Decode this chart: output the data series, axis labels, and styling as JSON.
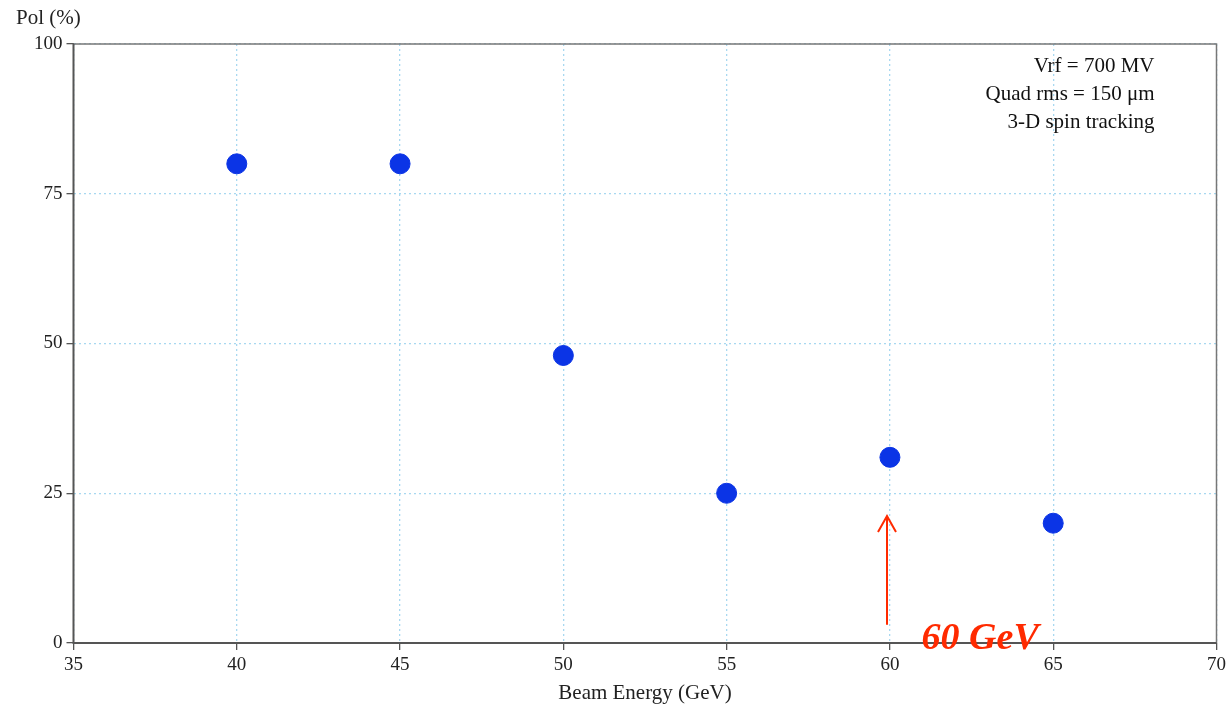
{
  "chart_data": {
    "type": "scatter",
    "xlabel": "Beam Energy (GeV)",
    "ylabel": "Pol (%)",
    "x": [
      40,
      45,
      50,
      55,
      60,
      65
    ],
    "series": [
      {
        "color": "#0b34e6",
        "values": [
          80,
          80,
          48,
          25,
          31,
          20
        ]
      }
    ],
    "xlim": [
      35,
      70
    ],
    "xticks": [
      35,
      40,
      45,
      50,
      55,
      60,
      65,
      70
    ],
    "ylim": [
      0,
      100
    ],
    "yticks": [
      0,
      25,
      50,
      75,
      100
    ],
    "grid": true,
    "legend": false,
    "marker": "circle",
    "annotations": [
      "Vrf = 700 MV",
      "Quad rms = 150 μm",
      "3-D spin tracking",
      "60 GeV"
    ]
  }
}
